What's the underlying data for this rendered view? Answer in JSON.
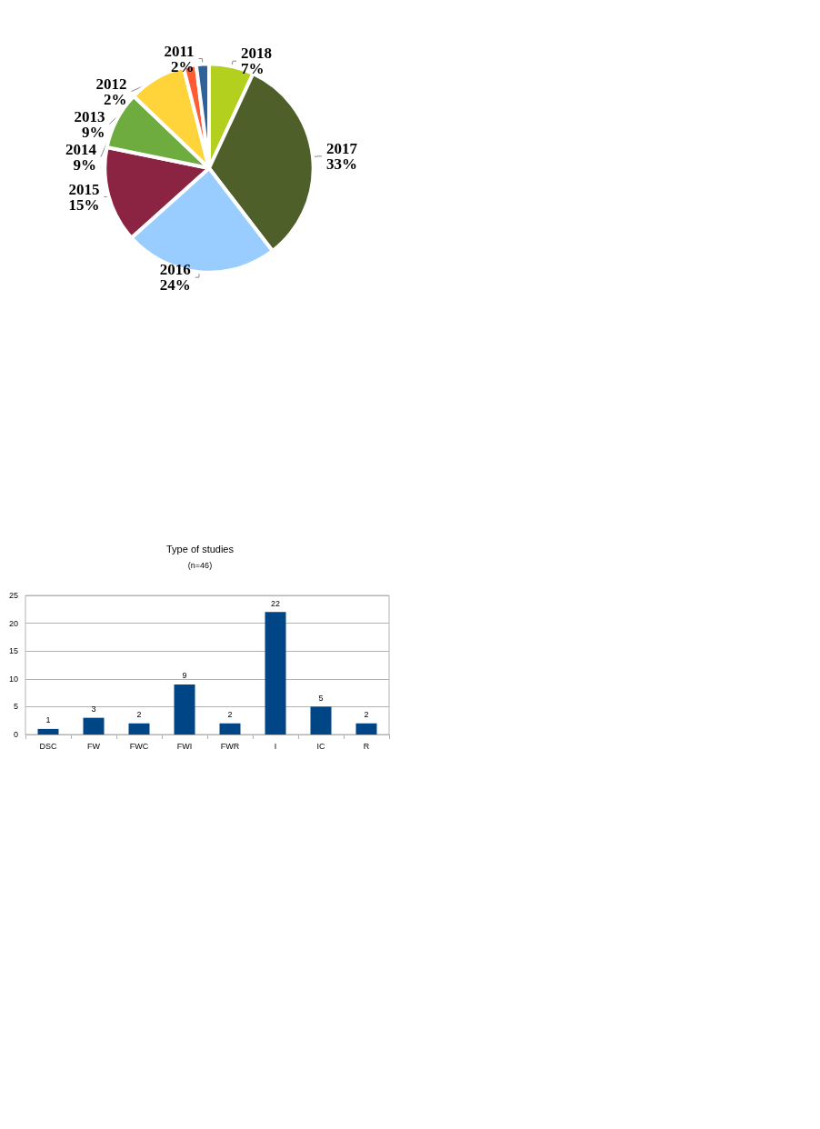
{
  "chart_data": [
    {
      "type": "pie",
      "categories": [
        "2018",
        "2017",
        "2016",
        "2015",
        "2014",
        "2013",
        "2012",
        "2011"
      ],
      "values": [
        7,
        33,
        24,
        15,
        9,
        9,
        2,
        2
      ],
      "value_labels": [
        "7%",
        "33%",
        "24%",
        "15%",
        "9%",
        "9%",
        "2%",
        "2%"
      ],
      "colors": [
        "#b3d01f",
        "#4e5f2a",
        "#99ccff",
        "#8b2442",
        "#6fac3f",
        "#ffd33a",
        "#ff5c33",
        "#2e6199"
      ],
      "legend": false
    },
    {
      "type": "bar",
      "title": "Type of studies",
      "subtitle": "(n=46)",
      "categories": [
        "DSC",
        "FW",
        "FWC",
        "FWI",
        "FWR",
        "I",
        "IC",
        "R"
      ],
      "values": [
        1,
        3,
        2,
        9,
        2,
        22,
        5,
        2
      ],
      "color": "#004586",
      "ylim": [
        0,
        25
      ],
      "yticks": [
        0,
        5,
        10,
        15,
        20,
        25
      ],
      "grid": "y",
      "data_labels": true,
      "legend": false
    }
  ]
}
